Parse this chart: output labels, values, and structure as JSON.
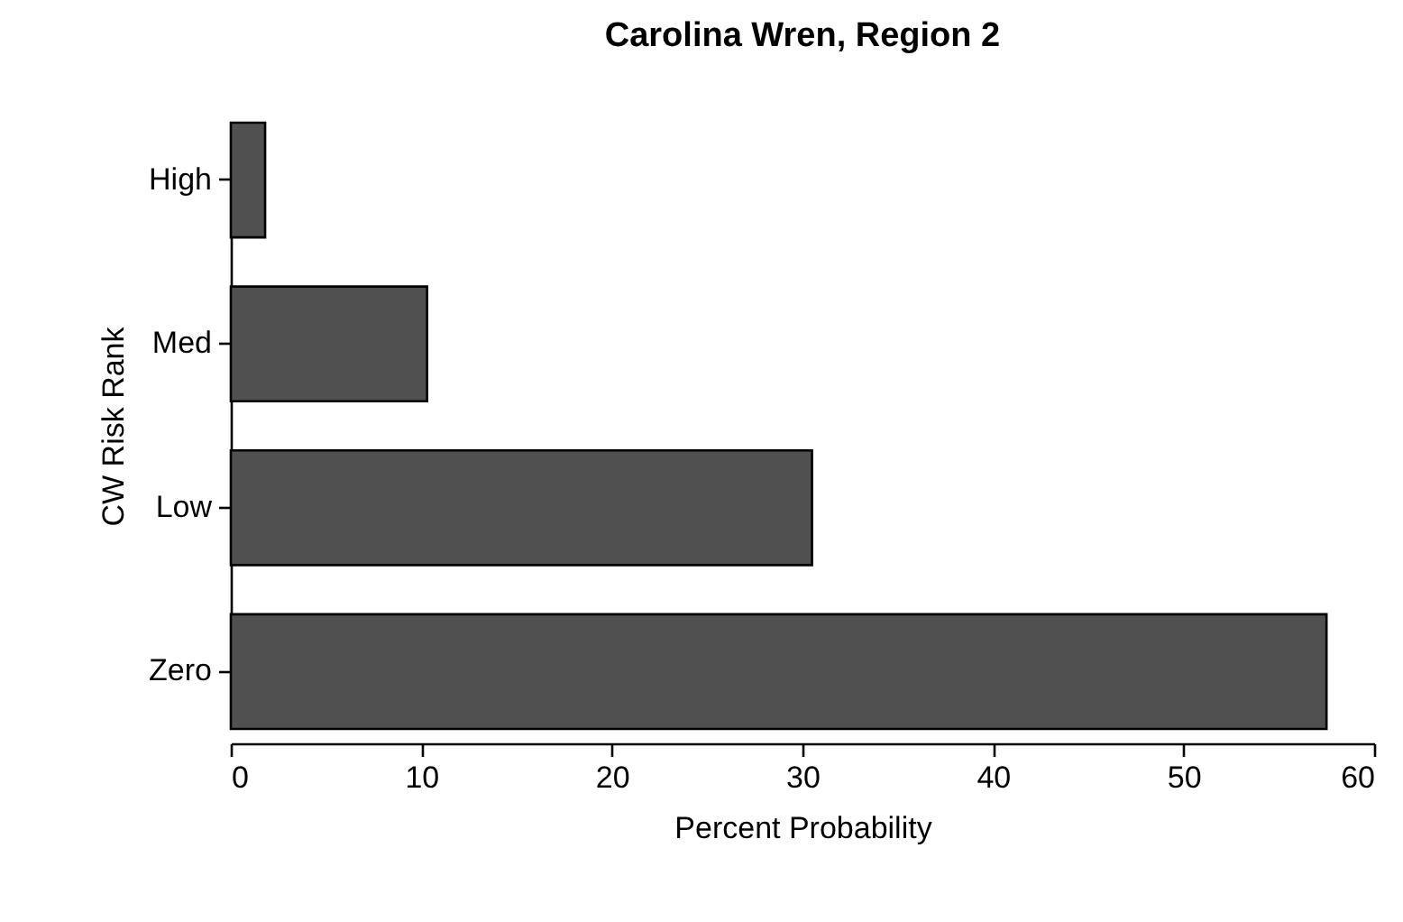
{
  "chart_data": {
    "type": "bar",
    "orientation": "horizontal",
    "title": "Carolina Wren, Region 2",
    "xlabel": "Percent Probability",
    "ylabel": "CW Risk Rank",
    "categories": [
      "High",
      "Med",
      "Low",
      "Zero"
    ],
    "values": [
      1.8,
      10.3,
      30.5,
      57.5
    ],
    "color": "#505050",
    "xlim": [
      0,
      60
    ],
    "xticks": [
      0,
      10,
      20,
      30,
      40,
      50,
      60
    ],
    "grid": false
  }
}
